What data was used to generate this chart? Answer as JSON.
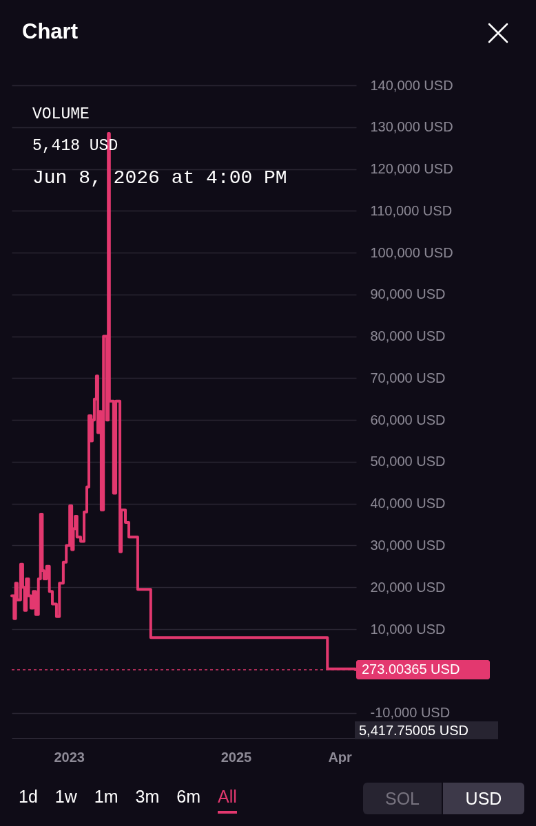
{
  "chart_data": {
    "type": "step",
    "title": "Chart",
    "annotations": [
      "VOLUME",
      "5,418 USD",
      "Jun 8, 2026 at 4:00 PM",
      "5,417.75005 USD",
      "1d",
      "1w",
      "1m",
      "3m",
      "6m",
      "All",
      "SOL",
      "USD"
    ],
    "x": [
      "2022-04-25",
      "2022-05-05",
      "2022-05-12",
      "2022-05-19",
      "2022-06-03",
      "2022-06-12",
      "2022-06-20",
      "2022-06-28",
      "2022-07-08",
      "2022-07-18",
      "2022-07-28",
      "2022-08-08",
      "2022-08-20",
      "2022-08-29",
      "2022-09-06",
      "2022-09-13",
      "2022-09-25",
      "2022-10-07",
      "2022-10-20",
      "2022-11-07",
      "2022-11-20",
      "2022-12-07",
      "2022-12-20",
      "2023-01-04",
      "2023-01-13",
      "2023-01-20",
      "2023-01-28",
      "2023-02-05",
      "2023-02-21",
      "2023-03-08",
      "2023-03-20",
      "2023-03-29",
      "2023-04-08",
      "2023-04-13",
      "2023-04-22",
      "2023-05-01",
      "2023-05-07",
      "2023-05-15",
      "2023-05-22",
      "2023-06-01",
      "2023-06-15",
      "2023-06-22",
      "2023-06-27",
      "2023-07-15",
      "2023-07-25",
      "2023-08-12",
      "2023-08-18",
      "2023-09-05",
      "2023-09-20",
      "2023-10-29",
      "2023-12-25",
      "2026-02-06",
      "2026-06-08"
    ],
    "series": [
      {
        "color": "#e3386f",
        "values": [
          18000,
          12500,
          21000,
          17000,
          25500,
          20000,
          14500,
          22000,
          18000,
          15000,
          19000,
          13500,
          22000,
          37500,
          24000,
          22000,
          25000,
          19000,
          16000,
          13000,
          21000,
          26000,
          30000,
          39500,
          29000,
          34000,
          37000,
          32000,
          31000,
          38000,
          44000,
          61000,
          55000,
          60000,
          65000,
          70500,
          57000,
          62000,
          38500,
          80000,
          60000,
          128500,
          64500,
          42500,
          64500,
          28500,
          38500,
          35500,
          32000,
          19500,
          8000,
          500,
          273
        ]
      }
    ],
    "xlim": [
      "2022-04-25",
      "2026-06-12"
    ],
    "xticks": [
      {
        "value": "2023-01-01",
        "label": "2023"
      },
      {
        "value": "2025-01-01",
        "label": "2025"
      },
      {
        "value": "2026-04-01",
        "label": "Apr"
      }
    ],
    "ylim": [
      -16000,
      140000
    ],
    "yticks": [
      {
        "value": -10000,
        "label": "-10,000 USD"
      },
      {
        "value": 10000,
        "label": "10,000 USD"
      },
      {
        "value": 20000,
        "label": "20,000 USD"
      },
      {
        "value": 30000,
        "label": "30,000 USD"
      },
      {
        "value": 40000,
        "label": "40,000 USD"
      },
      {
        "value": 50000,
        "label": "50,000 USD"
      },
      {
        "value": 60000,
        "label": "60,000 USD"
      },
      {
        "value": 70000,
        "label": "70,000 USD"
      },
      {
        "value": 80000,
        "label": "80,000 USD"
      },
      {
        "value": 90000,
        "label": "90,000 USD"
      },
      {
        "value": 100000,
        "label": "100,000 USD"
      },
      {
        "value": 110000,
        "label": "110,000 USD"
      },
      {
        "value": 120000,
        "label": "120,000 USD"
      },
      {
        "value": 130000,
        "label": "130,000 USD"
      },
      {
        "value": 140000,
        "label": "140,000 USD"
      }
    ],
    "ref_lines": [
      {
        "axis": "y",
        "value": 273.00365,
        "label": "273.00365 USD",
        "color": "#e3386f",
        "line_style": "dashed"
      }
    ],
    "grid": "y",
    "line_style": "solid"
  }
}
